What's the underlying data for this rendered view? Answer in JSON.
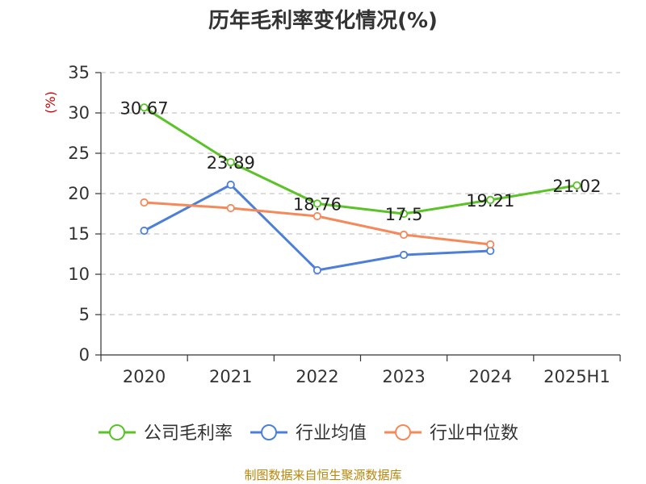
{
  "chart_data": {
    "type": "line",
    "title": "历年毛利率变化情况(%)",
    "ylabel": "(%)",
    "xlabel": "",
    "categories": [
      "2020",
      "2021",
      "2022",
      "2023",
      "2024",
      "2025H1"
    ],
    "ylim": [
      0,
      35
    ],
    "yticks": [
      0,
      5,
      10,
      15,
      20,
      25,
      30,
      35
    ],
    "grid": true,
    "legend_position": "bottom",
    "series": [
      {
        "name": "公司毛利率",
        "color": "#5bc227",
        "values": [
          30.67,
          23.89,
          18.76,
          17.5,
          19.21,
          21.02
        ],
        "labels": [
          "30.67",
          "23.89",
          "18.76",
          "17.5",
          "19.21",
          "21.02"
        ]
      },
      {
        "name": "行业均值",
        "color": "#4e7fd8",
        "values": [
          15.4,
          21.1,
          10.5,
          12.4,
          12.9,
          null
        ]
      },
      {
        "name": "行业中位数",
        "color": "#f5895a",
        "values": [
          18.9,
          18.2,
          17.2,
          14.9,
          13.7,
          null
        ]
      }
    ],
    "source": "制图数据来自恒生聚源数据库"
  }
}
